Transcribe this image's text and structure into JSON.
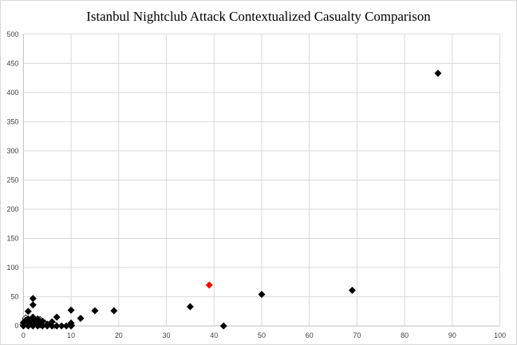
{
  "chart_data": {
    "type": "scatter",
    "title": "Istanbul Nightclub Attack Contextualized Casualty Comparison",
    "xlabel": "",
    "ylabel": "",
    "xlim": [
      0,
      100
    ],
    "ylim": [
      0,
      500
    ],
    "x_ticks": [
      0,
      10,
      20,
      30,
      40,
      50,
      60,
      70,
      80,
      90,
      100
    ],
    "y_ticks": [
      0,
      50,
      100,
      150,
      200,
      250,
      300,
      350,
      400,
      450,
      500
    ],
    "grid": true,
    "legend": "none",
    "marker": "diamond",
    "colors": {
      "default_point": "#000000",
      "highlight_point": "#ff0000",
      "hollow_point_fill": "#ffffff",
      "gridline": "#d9d9d9"
    },
    "points": [
      {
        "x": 0,
        "y": 0
      },
      {
        "x": 0,
        "y": 6
      },
      {
        "x": 0.5,
        "y": 10
      },
      {
        "x": 1,
        "y": 0
      },
      {
        "x": 1,
        "y": 5
      },
      {
        "x": 1,
        "y": 12
      },
      {
        "x": 1,
        "y": 25
      },
      {
        "x": 1.5,
        "y": 3
      },
      {
        "x": 2,
        "y": 0
      },
      {
        "x": 2,
        "y": 8
      },
      {
        "x": 2,
        "y": 15
      },
      {
        "x": 2,
        "y": 36
      },
      {
        "x": 2,
        "y": 47
      },
      {
        "x": 2.5,
        "y": 4
      },
      {
        "x": 3,
        "y": 0
      },
      {
        "x": 3,
        "y": 6
      },
      {
        "x": 3,
        "y": 12
      },
      {
        "x": 3.5,
        "y": 2
      },
      {
        "x": 4,
        "y": 0
      },
      {
        "x": 4,
        "y": 8
      },
      {
        "x": 5,
        "y": 0
      },
      {
        "x": 5,
        "y": 3
      },
      {
        "x": 6,
        "y": 0
      },
      {
        "x": 6,
        "y": 7
      },
      {
        "x": 7,
        "y": 0
      },
      {
        "x": 7,
        "y": 15
      },
      {
        "x": 8,
        "y": 0
      },
      {
        "x": 9,
        "y": 0
      },
      {
        "x": 10,
        "y": 0
      },
      {
        "x": 10,
        "y": 5
      },
      {
        "x": 10,
        "y": 27
      },
      {
        "x": 12,
        "y": 13
      },
      {
        "x": 15,
        "y": 26
      },
      {
        "x": 19,
        "y": 26
      },
      {
        "x": 35,
        "y": 33
      },
      {
        "x": 39,
        "y": 70,
        "highlight": true
      },
      {
        "x": 42,
        "y": 0
      },
      {
        "x": 50,
        "y": 54
      },
      {
        "x": 69,
        "y": 61
      },
      {
        "x": 87,
        "y": 433
      }
    ],
    "hollow_points": [
      {
        "x": 0,
        "y": 2
      },
      {
        "x": 0.5,
        "y": 13
      },
      {
        "x": 1.5,
        "y": 9
      },
      {
        "x": 3.5,
        "y": 10
      },
      {
        "x": 4.5,
        "y": 4
      },
      {
        "x": 6.5,
        "y": 2
      },
      {
        "x": 10,
        "y": 1
      }
    ]
  }
}
